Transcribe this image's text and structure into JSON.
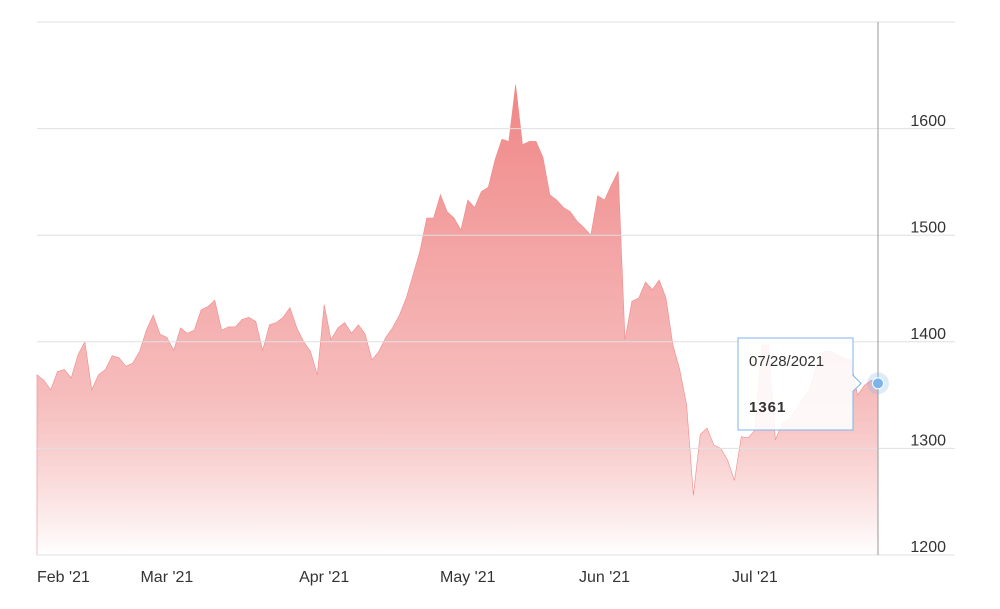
{
  "chart_data": {
    "type": "area",
    "color": "#f08a8a",
    "grid": true,
    "categories": [
      "Feb '21",
      null,
      null,
      null,
      null,
      null,
      null,
      null,
      null,
      null,
      null,
      null,
      null,
      null,
      null,
      null,
      null,
      null,
      null,
      "Mar '21",
      null,
      null,
      null,
      null,
      null,
      null,
      null,
      null,
      null,
      null,
      null,
      null,
      null,
      null,
      null,
      null,
      null,
      null,
      null,
      null,
      null,
      null,
      "Apr '21",
      null,
      null,
      null,
      null,
      null,
      null,
      null,
      null,
      null,
      null,
      null,
      null,
      null,
      null,
      null,
      null,
      null,
      null,
      null,
      null,
      "May '21",
      null,
      null,
      null,
      null,
      null,
      null,
      null,
      null,
      null,
      null,
      null,
      null,
      null,
      null,
      null,
      null,
      null,
      null,
      null,
      "Jun '21",
      null,
      null,
      null,
      null,
      null,
      null,
      null,
      null,
      null,
      null,
      null,
      null,
      null,
      null,
      null,
      null,
      null,
      null,
      null,
      null,
      null,
      "Jul '21",
      null,
      null,
      null,
      null,
      null,
      null,
      null,
      null,
      null,
      null,
      null,
      null,
      null,
      null,
      null,
      null,
      null,
      null
    ],
    "values": [
      1369,
      1364,
      1355,
      1372,
      1374,
      1366,
      1388,
      1400,
      1355,
      1369,
      1374,
      1387,
      1385,
      1377,
      1380,
      1391,
      1411,
      1425,
      1407,
      1404,
      1392,
      1413,
      1408,
      1411,
      1430,
      1433,
      1439,
      1411,
      1414,
      1414,
      1421,
      1423,
      1419,
      1392,
      1416,
      1418,
      1423,
      1432,
      1413,
      1400,
      1391,
      1369,
      1435,
      1402,
      1413,
      1418,
      1408,
      1416,
      1407,
      1383,
      1391,
      1404,
      1413,
      1425,
      1441,
      1463,
      1485,
      1516,
      1516,
      1538,
      1522,
      1516,
      1505,
      1533,
      1526,
      1541,
      1545,
      1571,
      1590,
      1588,
      1641,
      1585,
      1588,
      1588,
      1573,
      1538,
      1533,
      1526,
      1522,
      1513,
      1507,
      1500,
      1537,
      1533,
      1547,
      1560,
      1402,
      1438,
      1441,
      1456,
      1449,
      1458,
      1441,
      1397,
      1374,
      1341,
      1256,
      1313,
      1319,
      1303,
      1300,
      1289,
      1270,
      1311,
      1310,
      1317,
      1397,
      1397,
      1308,
      1324,
      1327,
      1336,
      1347,
      1355,
      1378,
      1391,
      1391,
      1388,
      1385,
      1383,
      1350,
      1359,
      1364,
      1361
    ],
    "ylim": [
      1200,
      1700
    ],
    "yticks": [
      1200,
      1300,
      1400,
      1500,
      1600
    ],
    "tooltip_date": "07/28/2021"
  }
}
